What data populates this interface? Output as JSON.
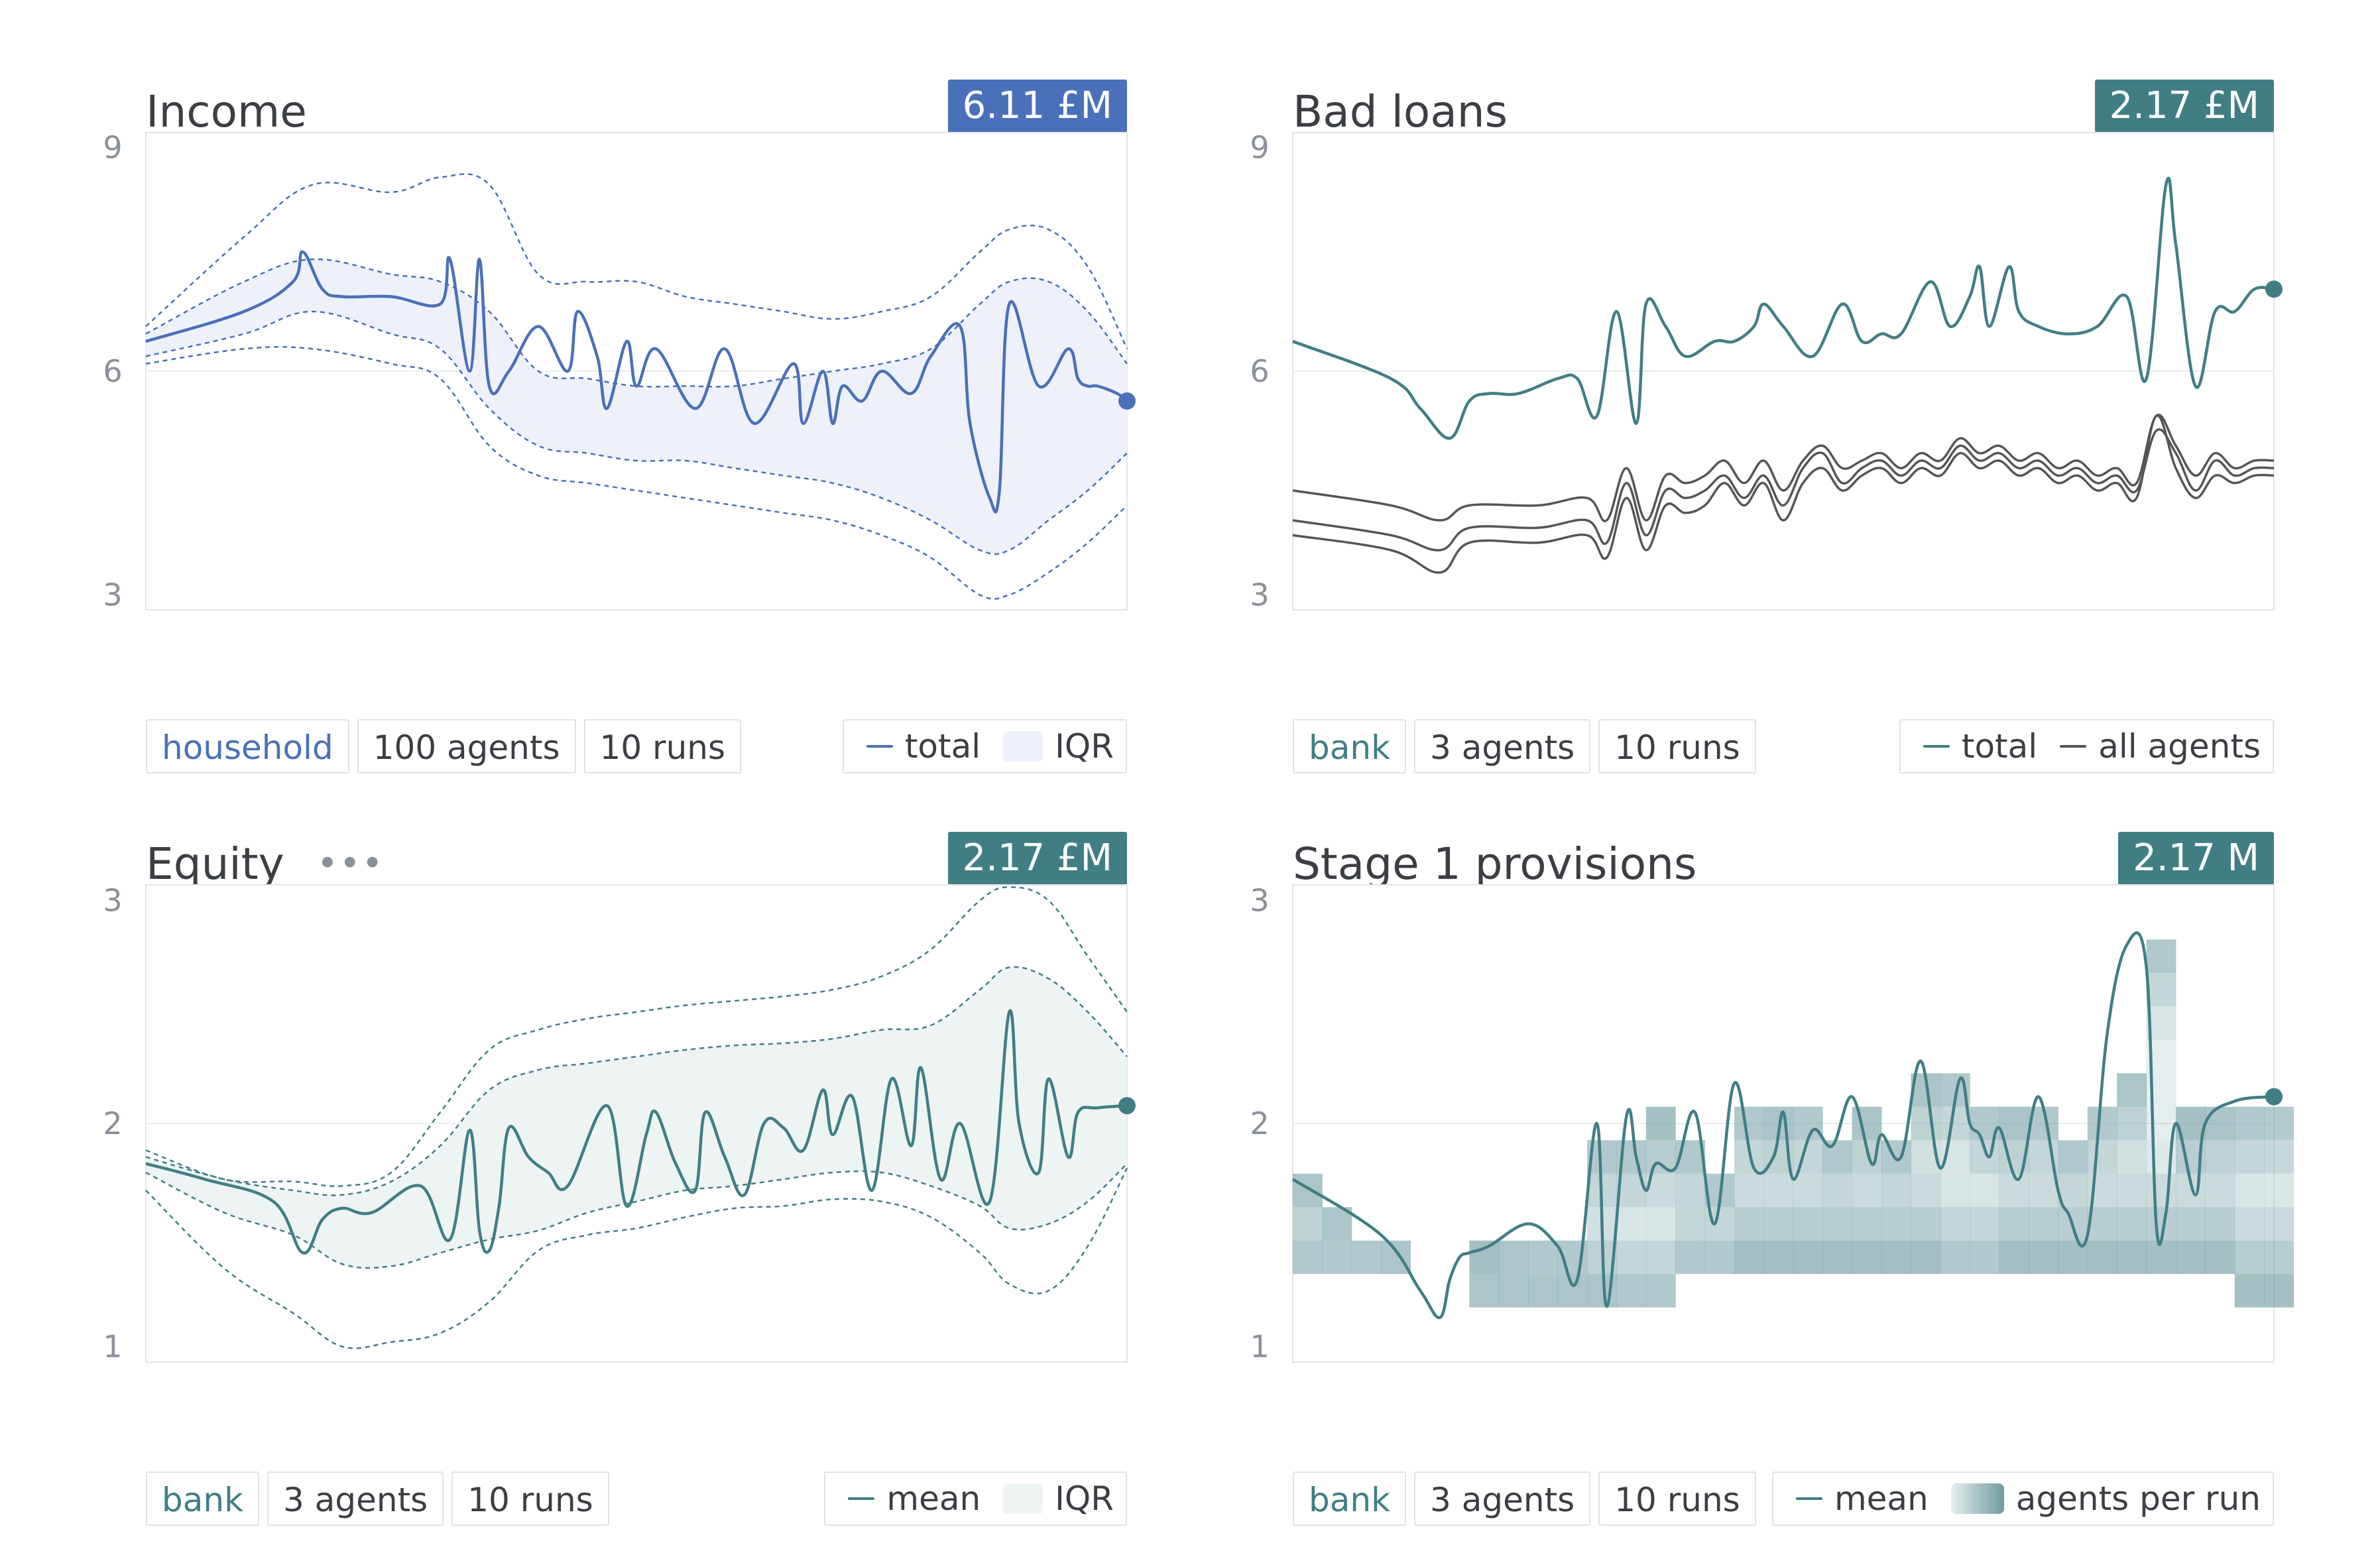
{
  "panels": [
    {
      "id": "income",
      "title": "Income",
      "badge": "6.11 £M",
      "accent": "#4a70b9",
      "band_fill": "#eef1fa",
      "tags": [
        "household",
        "100 agents",
        "10 runs"
      ],
      "legend": [
        {
          "label": "total",
          "kind": "line",
          "color": "#4a70b9"
        },
        {
          "label": "IQR",
          "kind": "box",
          "color": "#eef1fa"
        }
      ]
    },
    {
      "id": "bad-loans",
      "title": "Bad loans",
      "badge": "2.17 £M",
      "accent": "#417e84",
      "tags": [
        "bank",
        "3 agents",
        "10 runs"
      ],
      "legend": [
        {
          "label": "total",
          "kind": "line",
          "color": "#417e84"
        },
        {
          "label": "all agents",
          "kind": "line",
          "color": "#555555"
        }
      ]
    },
    {
      "id": "equity",
      "title": "Equity",
      "more_icon": "ellipsis-icon",
      "badge": "2.17 £M",
      "accent": "#417e84",
      "band_fill": "#eef3f4",
      "tags": [
        "bank",
        "3 agents",
        "10 runs"
      ],
      "legend": [
        {
          "label": "mean",
          "kind": "line",
          "color": "#417e84"
        },
        {
          "label": "IQR",
          "kind": "box",
          "color": "#eef3f4"
        }
      ]
    },
    {
      "id": "stage1",
      "title": "Stage 1 provisions",
      "badge": "2.17 M",
      "accent": "#417e84",
      "tags": [
        "bank",
        "3 agents",
        "10 runs"
      ],
      "legend": [
        {
          "label": "mean",
          "kind": "line",
          "color": "#417e84"
        },
        {
          "label": "agents per run",
          "kind": "gradient",
          "color": "#6f9ba0"
        }
      ]
    }
  ],
  "chart_data": [
    {
      "type": "line",
      "title": "Income",
      "yticks": [
        3,
        6,
        9
      ],
      "ylim": [
        2.8,
        9.2
      ],
      "xlim": [
        0,
        100
      ],
      "grid": "y=6 only",
      "series": [
        {
          "name": "total",
          "x": [
            0,
            10,
            15,
            16,
            18,
            20,
            25,
            30,
            31,
            33,
            34,
            35,
            37,
            40,
            43,
            44,
            46,
            47,
            49,
            50,
            52,
            56,
            59,
            62,
            66,
            67,
            69,
            70,
            71,
            73,
            75,
            78,
            80,
            83,
            84,
            86,
            87,
            88,
            91,
            94,
            95,
            96,
            97,
            99,
            100
          ],
          "y": [
            6.4,
            6.8,
            7.2,
            7.6,
            7.1,
            7.0,
            7.0,
            6.9,
            7.5,
            6.0,
            7.5,
            5.8,
            6.0,
            6.6,
            6.0,
            6.8,
            6.2,
            5.5,
            6.4,
            5.8,
            6.3,
            5.5,
            6.3,
            5.3,
            6.1,
            5.3,
            6.0,
            5.3,
            5.8,
            5.6,
            6.0,
            5.7,
            6.2,
            6.6,
            5.3,
            4.3,
            4.4,
            6.9,
            5.8,
            6.3,
            5.9,
            5.8,
            5.8,
            5.7,
            5.6
          ]
        }
      ],
      "iqr": {
        "x": [
          0,
          10,
          17,
          25,
          30,
          35,
          40,
          45,
          50,
          55,
          60,
          65,
          70,
          75,
          80,
          85,
          88,
          92,
          96,
          100
        ],
        "upper": [
          6.5,
          7.2,
          7.5,
          7.3,
          7.2,
          6.8,
          6.0,
          5.9,
          5.8,
          5.8,
          5.8,
          5.9,
          6.0,
          6.1,
          6.3,
          6.9,
          7.2,
          7.2,
          6.8,
          6.1
        ],
        "lower": [
          6.2,
          6.5,
          6.8,
          6.5,
          6.3,
          5.5,
          5.0,
          4.9,
          4.8,
          4.8,
          4.7,
          4.6,
          4.5,
          4.3,
          4.0,
          3.6,
          3.6,
          4.0,
          4.4,
          4.9
        ]
      },
      "outer": {
        "upper": [
          6.6,
          7.8,
          8.5,
          8.4,
          8.6,
          8.5,
          7.3,
          7.2,
          7.2,
          7.0,
          6.9,
          6.8,
          6.7,
          6.8,
          7.0,
          7.6,
          7.9,
          7.9,
          7.4,
          6.3
        ],
        "lower": [
          6.1,
          6.3,
          6.3,
          6.1,
          5.9,
          5.0,
          4.6,
          4.5,
          4.4,
          4.3,
          4.2,
          4.1,
          4.0,
          3.8,
          3.5,
          3.0,
          3.0,
          3.3,
          3.7,
          4.2
        ]
      },
      "last_value": 5.6
    },
    {
      "type": "line",
      "title": "Bad loans",
      "yticks": [
        3,
        6,
        9
      ],
      "ylim": [
        2.8,
        9.2
      ],
      "xlim": [
        0,
        100
      ],
      "series": [
        {
          "name": "total",
          "x": [
            0,
            10,
            13,
            16,
            18,
            20,
            23,
            27,
            29,
            31,
            33,
            35,
            36,
            38,
            40,
            43,
            45,
            47,
            48,
            50,
            53,
            56,
            58,
            60,
            62,
            65,
            67,
            69,
            70,
            71,
            73,
            74,
            76,
            79,
            82,
            85,
            87,
            89,
            90,
            92,
            94,
            96,
            98,
            100
          ],
          "y": [
            6.4,
            5.9,
            5.5,
            5.1,
            5.6,
            5.7,
            5.7,
            5.9,
            5.9,
            5.4,
            6.8,
            5.3,
            6.9,
            6.6,
            6.2,
            6.4,
            6.4,
            6.6,
            6.9,
            6.6,
            6.2,
            6.9,
            6.4,
            6.5,
            6.5,
            7.2,
            6.6,
            7.0,
            7.4,
            6.6,
            7.4,
            6.8,
            6.6,
            6.5,
            6.6,
            7.0,
            5.9,
            8.5,
            7.7,
            5.8,
            6.8,
            6.8,
            7.1,
            7.1
          ]
        },
        {
          "name": "agent 1",
          "x": [
            0,
            10,
            15,
            18,
            25,
            30,
            32,
            34,
            36,
            38,
            40,
            42,
            44,
            46,
            48,
            50,
            52,
            54,
            56,
            58,
            60,
            62,
            64,
            66,
            68,
            70,
            72,
            74,
            76,
            78,
            80,
            82,
            84,
            86,
            88,
            90,
            92,
            94,
            96,
            98,
            100
          ],
          "y": [
            4.4,
            4.2,
            4.0,
            4.2,
            4.2,
            4.3,
            4.0,
            4.7,
            4.0,
            4.6,
            4.5,
            4.6,
            4.8,
            4.5,
            4.8,
            4.4,
            4.8,
            5.0,
            4.7,
            4.8,
            4.9,
            4.7,
            4.9,
            4.8,
            5.1,
            4.9,
            5.0,
            4.8,
            4.9,
            4.7,
            4.8,
            4.6,
            4.7,
            4.5,
            5.4,
            5.0,
            4.6,
            4.9,
            4.7,
            4.8,
            4.8
          ]
        },
        {
          "name": "agent 2",
          "x": [
            0,
            10,
            15,
            18,
            25,
            30,
            32,
            34,
            36,
            38,
            40,
            42,
            44,
            46,
            48,
            50,
            52,
            54,
            56,
            58,
            60,
            62,
            64,
            66,
            68,
            70,
            72,
            74,
            76,
            78,
            80,
            82,
            84,
            86,
            88,
            90,
            92,
            94,
            96,
            98,
            100
          ],
          "y": [
            4.0,
            3.8,
            3.6,
            3.9,
            3.9,
            4.0,
            3.7,
            4.5,
            3.8,
            4.4,
            4.3,
            4.4,
            4.6,
            4.3,
            4.6,
            4.2,
            4.7,
            4.9,
            4.5,
            4.7,
            4.8,
            4.6,
            4.8,
            4.7,
            5.0,
            4.8,
            4.9,
            4.7,
            4.8,
            4.6,
            4.7,
            4.5,
            4.6,
            4.4,
            5.2,
            4.9,
            4.4,
            4.8,
            4.6,
            4.7,
            4.7
          ]
        },
        {
          "name": "agent 3",
          "x": [
            0,
            10,
            15,
            18,
            25,
            30,
            32,
            34,
            36,
            38,
            40,
            42,
            44,
            46,
            48,
            50,
            52,
            54,
            56,
            58,
            60,
            62,
            64,
            66,
            68,
            70,
            72,
            74,
            76,
            78,
            80,
            82,
            84,
            86,
            88,
            90,
            92,
            94,
            96,
            98,
            100
          ],
          "y": [
            3.8,
            3.6,
            3.3,
            3.7,
            3.7,
            3.8,
            3.5,
            4.3,
            3.6,
            4.2,
            4.1,
            4.2,
            4.5,
            4.2,
            4.5,
            4.0,
            4.5,
            4.7,
            4.4,
            4.6,
            4.7,
            4.5,
            4.7,
            4.6,
            4.9,
            4.7,
            4.8,
            4.6,
            4.7,
            4.5,
            4.6,
            4.4,
            4.5,
            4.3,
            5.4,
            4.7,
            4.3,
            4.6,
            4.5,
            4.6,
            4.6
          ]
        }
      ],
      "last_value": 7.1
    },
    {
      "type": "line",
      "title": "Equity",
      "yticks": [
        1,
        2,
        3
      ],
      "ylim": [
        0.93,
        3.07
      ],
      "xlim": [
        0,
        100
      ],
      "series": [
        {
          "name": "mean",
          "x": [
            0,
            6,
            13,
            16,
            18,
            20,
            23,
            28,
            31,
            33,
            34,
            35,
            36,
            37,
            39,
            41,
            43,
            47,
            49,
            51,
            52,
            54,
            56,
            57,
            59,
            61,
            63,
            65,
            67,
            69,
            70,
            72,
            74,
            76,
            78,
            79,
            81,
            83,
            86,
            88,
            89,
            91,
            92,
            94,
            95,
            97,
            100
          ],
          "y": [
            1.82,
            1.75,
            1.65,
            1.42,
            1.57,
            1.62,
            1.6,
            1.72,
            1.48,
            1.97,
            1.52,
            1.43,
            1.63,
            1.98,
            1.85,
            1.78,
            1.72,
            2.08,
            1.63,
            1.95,
            2.05,
            1.82,
            1.7,
            2.05,
            1.85,
            1.68,
            2.0,
            1.98,
            1.88,
            2.15,
            1.95,
            2.12,
            1.7,
            2.2,
            1.9,
            2.25,
            1.75,
            2.0,
            1.65,
            2.5,
            2.0,
            1.78,
            2.2,
            1.85,
            2.05,
            2.07,
            2.08
          ]
        }
      ],
      "iqr": {
        "x": [
          0,
          8,
          15,
          20,
          25,
          30,
          35,
          40,
          45,
          50,
          55,
          60,
          65,
          70,
          75,
          80,
          85,
          88,
          92,
          96,
          100
        ],
        "upper": [
          1.85,
          1.75,
          1.7,
          1.68,
          1.74,
          1.9,
          2.15,
          2.24,
          2.27,
          2.3,
          2.33,
          2.35,
          2.36,
          2.38,
          2.42,
          2.44,
          2.6,
          2.7,
          2.65,
          2.5,
          2.3
        ],
        "lower": [
          1.78,
          1.6,
          1.5,
          1.37,
          1.36,
          1.42,
          1.48,
          1.52,
          1.6,
          1.65,
          1.7,
          1.72,
          1.75,
          1.78,
          1.78,
          1.72,
          1.63,
          1.53,
          1.55,
          1.65,
          1.82
        ]
      },
      "outer": {
        "upper": [
          1.88,
          1.75,
          1.74,
          1.72,
          1.78,
          2.05,
          2.33,
          2.42,
          2.47,
          2.5,
          2.53,
          2.55,
          2.57,
          2.6,
          2.66,
          2.78,
          3.0,
          3.06,
          3.0,
          2.75,
          2.5
        ],
        "lower": [
          1.7,
          1.35,
          1.15,
          1.0,
          1.02,
          1.06,
          1.2,
          1.43,
          1.5,
          1.53,
          1.58,
          1.62,
          1.63,
          1.66,
          1.65,
          1.58,
          1.42,
          1.28,
          1.25,
          1.45,
          1.8
        ]
      },
      "last_value": 2.08
    },
    {
      "type": "heatmap",
      "title": "Stage 1 provisions",
      "yticks": [
        1,
        2,
        3
      ],
      "ylim": [
        0.93,
        3.07
      ],
      "xlim": [
        0,
        100
      ],
      "series": [
        {
          "name": "mean",
          "x": [
            0,
            9,
            13,
            15,
            16,
            17,
            18,
            20,
            24,
            27,
            29,
            31,
            32,
            34,
            35,
            36,
            37,
            39,
            41,
            43,
            45,
            47,
            49,
            50,
            51,
            53,
            55,
            57,
            59,
            60,
            62,
            64,
            66,
            68,
            69,
            70,
            71,
            72,
            74,
            76,
            78,
            79,
            81,
            83,
            85,
            87,
            88,
            89,
            90,
            92,
            93,
            96,
            100
          ],
          "y": [
            1.75,
            1.5,
            1.25,
            1.13,
            1.3,
            1.4,
            1.42,
            1.45,
            1.55,
            1.45,
            1.3,
            2.0,
            1.18,
            2.03,
            1.85,
            1.7,
            1.82,
            1.8,
            2.05,
            1.55,
            2.18,
            1.8,
            1.85,
            2.05,
            1.75,
            1.97,
            1.9,
            2.12,
            1.82,
            1.95,
            1.85,
            2.28,
            1.8,
            2.2,
            2.0,
            1.95,
            1.85,
            1.98,
            1.75,
            2.12,
            1.7,
            1.6,
            1.5,
            2.4,
            2.8,
            2.7,
            1.55,
            1.6,
            2.0,
            1.68,
            2.0,
            2.1,
            2.12
          ]
        }
      ],
      "heat": {
        "x": [
          0,
          3,
          6,
          9,
          12,
          15,
          18,
          21,
          24,
          27,
          30,
          33,
          36,
          39,
          42,
          45,
          48,
          51,
          54,
          57,
          60,
          63,
          66,
          69,
          72,
          75,
          78,
          81,
          84,
          87,
          90,
          93,
          96,
          99
        ],
        "levels": [
          1.1,
          1.25,
          1.4,
          1.55,
          1.7,
          1.85,
          2.0,
          2.15,
          2.3,
          2.45,
          2.6,
          2.75,
          2.9
        ],
        "high": [
          1.75,
          1.6,
          1.5,
          1.45,
          1.35,
          1.2,
          1.4,
          1.45,
          1.5,
          1.5,
          1.95,
          1.95,
          2.0,
          1.95,
          1.8,
          2.1,
          2.05,
          2.1,
          1.95,
          2.05,
          1.95,
          2.2,
          2.25,
          2.1,
          2.05,
          2.1,
          1.95,
          2.1,
          2.2,
          2.85,
          2.0,
          2.05,
          2.1,
          2.12
        ],
        "low": [
          1.3,
          1.3,
          1.3,
          1.3,
          1.3,
          1.15,
          1.2,
          1.2,
          1.2,
          1.2,
          1.2,
          1.15,
          1.15,
          1.3,
          1.3,
          1.4,
          1.4,
          1.4,
          1.4,
          1.4,
          1.4,
          1.4,
          1.3,
          1.3,
          1.4,
          1.4,
          1.4,
          1.4,
          1.4,
          1.4,
          1.4,
          1.4,
          1.25,
          1.25
        ]
      },
      "last_value": 2.12
    }
  ]
}
